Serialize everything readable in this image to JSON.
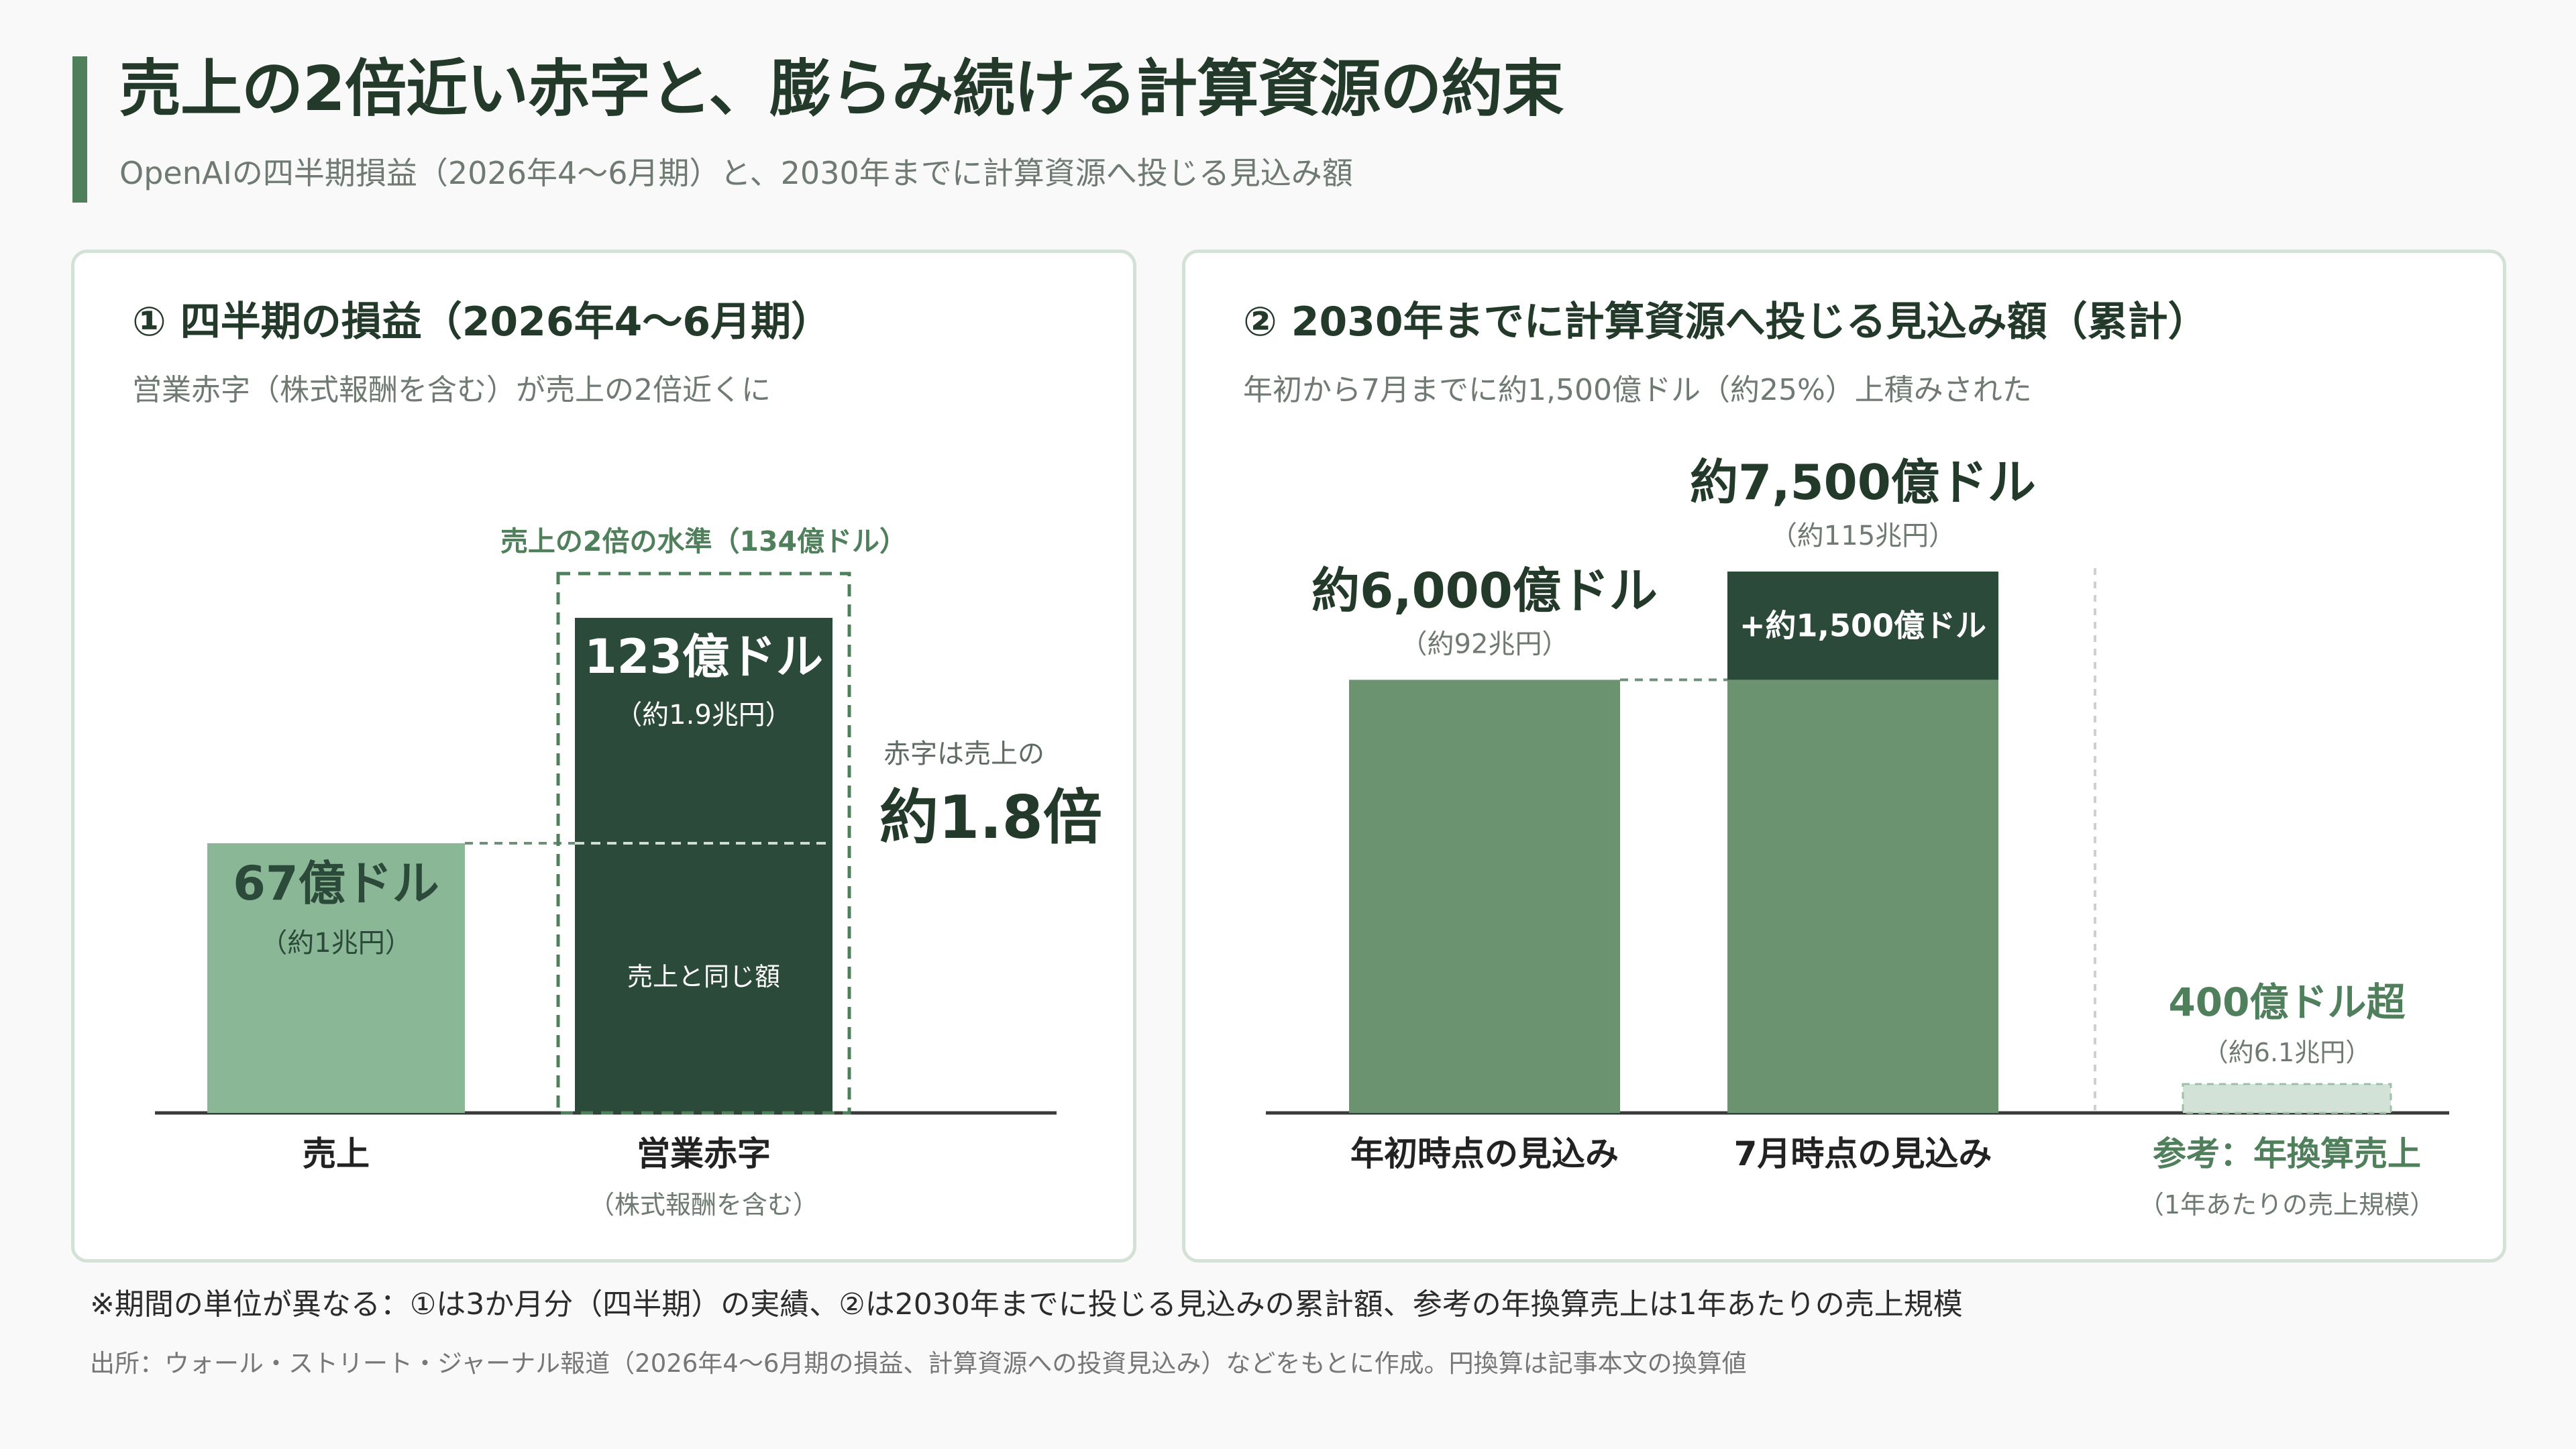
{
  "header": {
    "title": "売上の2倍近い赤字と、膨らみ続ける計算資源の約束",
    "subtitle": "OpenAIの四半期損益（2026年4〜6月期）と、2030年までに計算資源へ投じる見込み額"
  },
  "colors": {
    "accent": "#4f7f5b",
    "light_green": "#8ab795",
    "dark_green": "#2c4a3a",
    "mid_green": "#6b936f",
    "pale_green": "#d3e2d7"
  },
  "chart_data": [
    {
      "type": "bar",
      "title": "① 四半期の損益（2026年4〜6月期）",
      "subtitle": "営業赤字（株式報酬を含む）が売上の2倍近くに",
      "unit": "億ドル",
      "categories": [
        "売上",
        "営業赤字"
      ],
      "category_sublabels": [
        "",
        "（株式報酬を含む）"
      ],
      "values": [
        67,
        123
      ],
      "value_labels": [
        "67億ドル",
        "123億ドル"
      ],
      "value_sublabels": [
        "（約1兆円）",
        "（約1.9兆円）"
      ],
      "inner_label": "売上と同じ額",
      "reference": {
        "value": 134,
        "label": "売上の2倍の水準（134億ドル）"
      },
      "ratio_prefix": "赤字は売上の",
      "ratio_label": "約1.8倍",
      "ylim": [
        0,
        134
      ]
    },
    {
      "type": "bar",
      "title": "② 2030年までに計算資源へ投じる見込み額（累計）",
      "subtitle": "年初から7月までに約1,500億ドル（約25%）上積みされた",
      "unit": "億ドル",
      "categories": [
        "年初時点の見込み",
        "7月時点の見込み",
        "参考：年換算売上"
      ],
      "category_sublabels": [
        "",
        "",
        "（1年あたりの売上規模）"
      ],
      "values": [
        6000,
        7500,
        400
      ],
      "value_labels": [
        "約6,000億ドル",
        "約7,500億ドル",
        "400億ドル超"
      ],
      "value_sublabels": [
        "（約92兆円）",
        "（約115兆円）",
        "（約6.1兆円）"
      ],
      "increment": {
        "value": 1500,
        "label": "+約1,500億ドル"
      },
      "ylim": [
        0,
        7500
      ]
    }
  ],
  "footer": {
    "note": "※期間の単位が異なる：①は3か月分（四半期）の実績、②は2030年までに投じる見込みの累計額、参考の年換算売上は1年あたりの売上規模",
    "source": "出所：ウォール・ストリート・ジャーナル報道（2026年4〜6月期の損益、計算資源への投資見込み）などをもとに作成。円換算は記事本文の換算値"
  }
}
